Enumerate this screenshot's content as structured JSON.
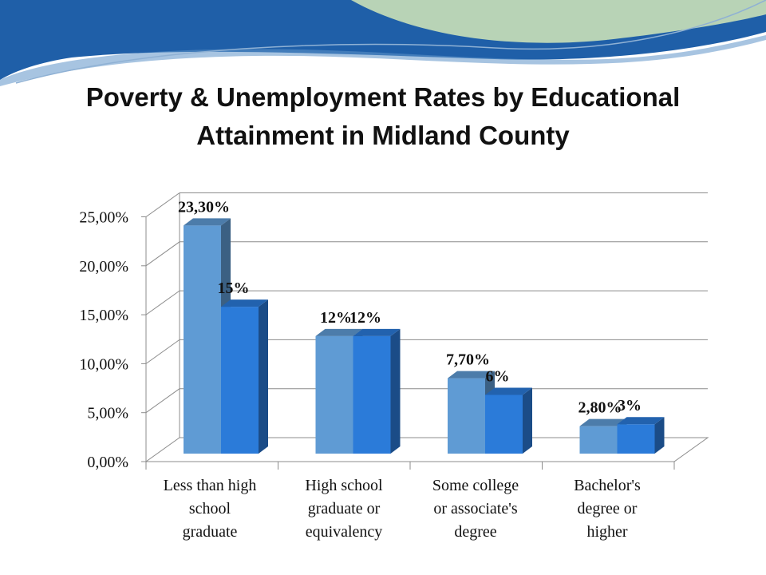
{
  "title_lines": [
    "Poverty  & Unemployment Rates by Educational",
    "Attainment in Midland County"
  ],
  "colors": {
    "series1": "#5f9bd4",
    "series2": "#2b7bd9",
    "banner_dark": "#1f5fa8",
    "banner_green": "#b8d3b6"
  },
  "chart_data": {
    "type": "bar",
    "categories": [
      "Less than high school graduate",
      "High school graduate or equivalency",
      "Some college or associate's degree",
      "Bachelor's degree or higher"
    ],
    "category_lines": [
      [
        "Less than high",
        "school",
        "graduate"
      ],
      [
        "High school",
        "graduate or",
        "equivalency"
      ],
      [
        "Some college",
        "or associate's",
        "degree"
      ],
      [
        "Bachelor's",
        "degree or",
        "higher"
      ]
    ],
    "series": [
      {
        "values": [
          23.3,
          12,
          7.7,
          2.8
        ],
        "labels": [
          "23,30%",
          "12%",
          "7,70%",
          "2,80%"
        ]
      },
      {
        "values": [
          15,
          12,
          6,
          3
        ],
        "labels": [
          "15%",
          "12%",
          "6%",
          "3%"
        ]
      }
    ],
    "ylim": [
      0,
      25
    ],
    "yticks": [
      "0,00%",
      "5,00%",
      "10,00%",
      "15,00%",
      "20,00%",
      "25,00%"
    ],
    "grid": true,
    "style": "3d-clustered-bar"
  }
}
